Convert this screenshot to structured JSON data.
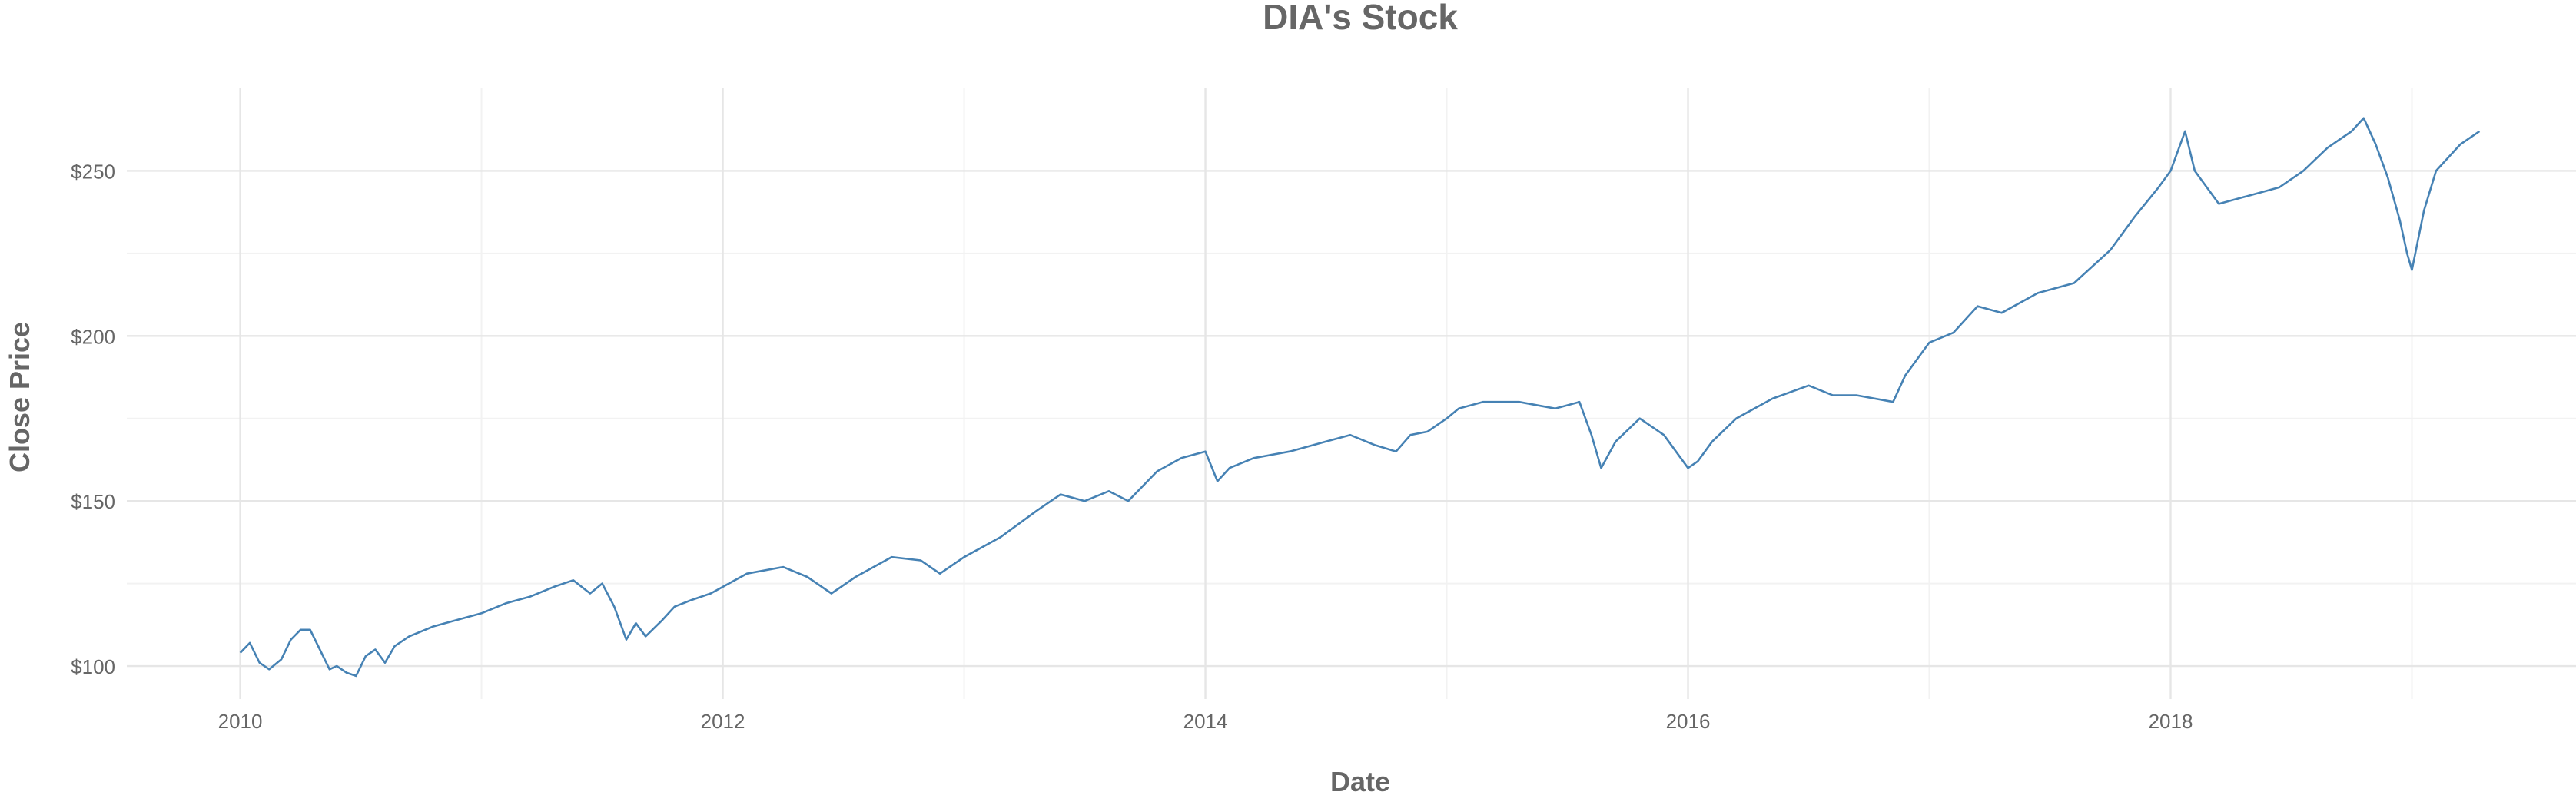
{
  "chart_data": {
    "type": "line",
    "title": "DIA's Stock",
    "xlabel": "Date",
    "ylabel": "Close Price",
    "grid": true,
    "legend": "none",
    "line_color": "#4682B4",
    "xlim": [
      2009.53,
      2019.68
    ],
    "ylim": [
      90,
      275
    ],
    "x_ticks": [
      2010,
      2012,
      2014,
      2016,
      2018
    ],
    "x_tick_labels": [
      "2010",
      "2012",
      "2014",
      "2016",
      "2018"
    ],
    "y_ticks": [
      100,
      150,
      200,
      250
    ],
    "y_tick_labels": [
      "$100",
      "$150",
      "$200",
      "$250"
    ],
    "series": [
      {
        "x": [
          2010.0,
          2010.04,
          2010.08,
          2010.12,
          2010.17,
          2010.21,
          2010.25,
          2010.29,
          2010.33,
          2010.37,
          2010.4,
          2010.44,
          2010.48,
          2010.52,
          2010.56,
          2010.6,
          2010.64,
          2010.7,
          2010.8,
          2010.9,
          2011.0,
          2011.1,
          2011.2,
          2011.3,
          2011.38,
          2011.45,
          2011.5,
          2011.55,
          2011.6,
          2011.64,
          2011.68,
          2011.75,
          2011.8,
          2011.87,
          2011.95,
          2012.1,
          2012.25,
          2012.35,
          2012.45,
          2012.55,
          2012.7,
          2012.82,
          2012.9,
          2013.0,
          2013.15,
          2013.3,
          2013.4,
          2013.5,
          2013.6,
          2013.68,
          2013.8,
          2013.9,
          2014.0,
          2014.05,
          2014.1,
          2014.2,
          2014.35,
          2014.5,
          2014.6,
          2014.7,
          2014.79,
          2014.85,
          2014.92,
          2015.0,
          2015.05,
          2015.15,
          2015.3,
          2015.45,
          2015.55,
          2015.6,
          2015.64,
          2015.7,
          2015.8,
          2015.9,
          2016.0,
          2016.04,
          2016.1,
          2016.2,
          2016.35,
          2016.5,
          2016.6,
          2016.7,
          2016.85,
          2016.9,
          2017.0,
          2017.1,
          2017.2,
          2017.3,
          2017.45,
          2017.6,
          2017.75,
          2017.85,
          2017.95,
          2018.0,
          2018.06,
          2018.1,
          2018.15,
          2018.2,
          2018.3,
          2018.45,
          2018.55,
          2018.65,
          2018.75,
          2018.8,
          2018.85,
          2018.9,
          2018.95,
          2018.98,
          2019.0,
          2019.05,
          2019.1,
          2019.2,
          2019.28
        ],
        "y": [
          104,
          107,
          101,
          99,
          102,
          108,
          111,
          111,
          105,
          99,
          100,
          98,
          97,
          103,
          105,
          101,
          106,
          109,
          112,
          114,
          116,
          119,
          121,
          124,
          126,
          122,
          125,
          118,
          108,
          113,
          109,
          114,
          118,
          120,
          122,
          128,
          130,
          127,
          122,
          127,
          133,
          132,
          128,
          133,
          139,
          147,
          152,
          150,
          153,
          150,
          159,
          163,
          165,
          156,
          160,
          163,
          165,
          168,
          170,
          167,
          165,
          170,
          171,
          175,
          178,
          180,
          180,
          178,
          180,
          170,
          160,
          168,
          175,
          170,
          160,
          162,
          168,
          175,
          181,
          185,
          182,
          182,
          180,
          188,
          198,
          201,
          209,
          207,
          213,
          216,
          226,
          236,
          245,
          250,
          262,
          250,
          245,
          240,
          242,
          245,
          250,
          257,
          262,
          266,
          258,
          248,
          235,
          225,
          220,
          238,
          250,
          258,
          262
        ]
      }
    ]
  }
}
